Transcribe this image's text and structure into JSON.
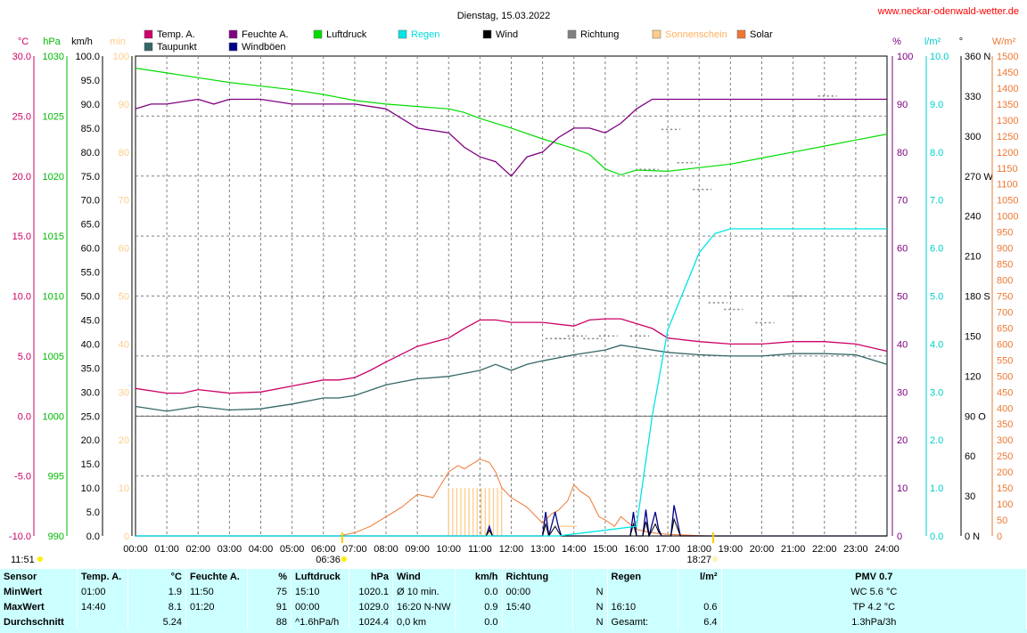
{
  "chart_data": {
    "type": "line",
    "title": "Dienstag, 15.03.2022",
    "website": "www.neckar-odenwald-wetter.de",
    "legend": [
      {
        "name": "Temp. A.",
        "color": "#cc0066"
      },
      {
        "name": "Feuchte A.",
        "color": "#800080"
      },
      {
        "name": "Luftdruck",
        "color": "#00dd00"
      },
      {
        "name": "Regen",
        "color": "#00e5e5"
      },
      {
        "name": "Wind",
        "color": "#000000"
      },
      {
        "name": "Richtung",
        "color": "#808080"
      },
      {
        "name": "Sonnenschein",
        "color": "#ffcc88"
      },
      {
        "name": "Solar",
        "color": "#ee7733"
      },
      {
        "name": "Taupunkt",
        "color": "#336666"
      },
      {
        "name": "Windböen",
        "color": "#000088"
      }
    ],
    "left_axis_units": {
      "temp": "°C",
      "pressure": "hPa",
      "wind": "km/h",
      "sun": "min"
    },
    "right_axis_units": {
      "humidity": "%",
      "rain": "l/m²",
      "direction": "°",
      "solar": "W/m²"
    },
    "x_ticks": [
      "00:00",
      "01:00",
      "02:00",
      "03:00",
      "04:00",
      "05:00",
      "06:00",
      "07:00",
      "08:00",
      "09:00",
      "10:00",
      "11:00",
      "12:00",
      "13:00",
      "14:00",
      "15:00",
      "16:00",
      "17:00",
      "18:00",
      "19:00",
      "20:00",
      "21:00",
      "22:00",
      "23:00",
      "24:00"
    ],
    "temp_ticks": [
      "30.0",
      "25.0",
      "20.0",
      "15.0",
      "10.0",
      "5.0",
      "0.0",
      "-5.0",
      "-10.0"
    ],
    "pressure_ticks": [
      "1030",
      "1025",
      "1020",
      "1015",
      "1010",
      "1005",
      "1000",
      "995",
      "990"
    ],
    "wind_ticks": [
      "100.0",
      "95.0",
      "90.0",
      "85.0",
      "80.0",
      "75.0",
      "70.0",
      "65.0",
      "60.0",
      "55.0",
      "50.0",
      "45.0",
      "40.0",
      "35.0",
      "30.0",
      "25.0",
      "20.0",
      "15.0",
      "10.0",
      "5.0",
      "0.0"
    ],
    "sun_ticks": [
      "100",
      "90",
      "80",
      "70",
      "60",
      "50",
      "40",
      "30",
      "20",
      "10",
      "0"
    ],
    "humidity_ticks": [
      "100",
      "90",
      "80",
      "70",
      "60",
      "50",
      "40",
      "30",
      "20",
      "10",
      "0"
    ],
    "rain_ticks": [
      "10.0",
      "9.0",
      "8.0",
      "7.0",
      "6.0",
      "5.0",
      "4.0",
      "3.0",
      "2.0",
      "1.0",
      "0.0"
    ],
    "direction_ticks": [
      "360 N",
      "330",
      "300",
      "270 W",
      "240",
      "210",
      "180 S",
      "150",
      "120",
      "90 O",
      "60",
      "30",
      "0 N"
    ],
    "solar_ticks": [
      "1500",
      "1450",
      "1400",
      "1350",
      "1300",
      "1250",
      "1200",
      "1150",
      "1100",
      "1050",
      "1000",
      "950",
      "900",
      "850",
      "800",
      "750",
      "700",
      "650",
      "600",
      "550",
      "500",
      "450",
      "400",
      "350",
      "300",
      "250",
      "200",
      "150",
      "100",
      "50",
      "0"
    ],
    "sunrise": "06:36",
    "sunset": "18:27",
    "day_length": "11:51",
    "series": [
      {
        "name": "Temp. A.",
        "unit": "°C",
        "x": [
          0,
          1,
          1.5,
          2,
          3,
          4,
          5,
          6,
          6.5,
          7,
          7.5,
          8,
          9,
          10,
          10.5,
          11,
          11.5,
          12,
          13,
          14,
          14.5,
          15,
          15.5,
          16,
          16.5,
          17,
          18,
          19,
          20,
          21,
          22,
          23,
          24
        ],
        "y": [
          2.3,
          1.9,
          1.9,
          2.2,
          1.9,
          2.0,
          2.5,
          3.0,
          3.0,
          3.2,
          3.8,
          4.5,
          5.8,
          6.5,
          7.3,
          8.0,
          8.0,
          7.8,
          7.8,
          7.5,
          8.0,
          8.1,
          8.1,
          7.7,
          7.3,
          6.5,
          6.2,
          6.0,
          6.0,
          6.2,
          6.2,
          6.0,
          5.4
        ]
      },
      {
        "name": "Taupunkt",
        "unit": "°C",
        "x": [
          0,
          1,
          2,
          3,
          4,
          5,
          6,
          6.5,
          7,
          8,
          9,
          10,
          11,
          11.5,
          12,
          12.5,
          13,
          14,
          15,
          15.5,
          16,
          17,
          18,
          19,
          20,
          21,
          22,
          23,
          24
        ],
        "y": [
          0.8,
          0.4,
          0.8,
          0.5,
          0.6,
          1.0,
          1.5,
          1.5,
          1.7,
          2.6,
          3.1,
          3.3,
          3.8,
          4.3,
          3.8,
          4.3,
          4.6,
          5.1,
          5.5,
          5.9,
          5.7,
          5.3,
          5.1,
          5.0,
          5.0,
          5.2,
          5.2,
          5.1,
          4.3
        ]
      },
      {
        "name": "Feuchte A.",
        "unit": "%",
        "x": [
          0,
          0.5,
          1,
          2,
          2.5,
          3,
          4,
          5,
          6,
          7,
          8,
          9,
          10,
          10.5,
          11,
          11.5,
          12,
          12.5,
          13,
          13.5,
          14,
          14.5,
          15,
          15.5,
          16,
          16.5,
          17,
          18,
          19,
          20,
          21,
          22,
          23,
          24
        ],
        "y": [
          89,
          90,
          90,
          91,
          90,
          91,
          91,
          90,
          90,
          90,
          89,
          85,
          84,
          81,
          79,
          78,
          75,
          79,
          80,
          83,
          85,
          85,
          84,
          86,
          89,
          91,
          91,
          91,
          91,
          91,
          91,
          91,
          91,
          91
        ]
      },
      {
        "name": "Luftdruck",
        "unit": "hPa",
        "x": [
          0,
          1,
          2,
          3,
          4,
          5,
          6,
          7,
          8,
          9,
          10,
          10.5,
          11,
          12,
          13,
          14,
          14.5,
          15,
          15.5,
          16,
          17,
          18,
          19,
          20,
          21,
          22,
          23,
          24
        ],
        "y": [
          1029.0,
          1028.6,
          1028.2,
          1027.8,
          1027.5,
          1027.2,
          1026.8,
          1026.3,
          1026.0,
          1025.8,
          1025.6,
          1025.3,
          1024.8,
          1024.0,
          1023.1,
          1022.3,
          1021.8,
          1020.6,
          1020.1,
          1020.5,
          1020.4,
          1020.7,
          1021.0,
          1021.5,
          1022.0,
          1022.5,
          1023.0,
          1023.5
        ]
      },
      {
        "name": "Regen",
        "unit": "l/m²",
        "x": [
          0,
          13.5,
          16,
          16.5,
          17,
          17.5,
          18,
          18.5,
          19,
          24
        ],
        "y": [
          0,
          0,
          0.2,
          2.5,
          4.3,
          5.1,
          5.9,
          6.3,
          6.4,
          6.4
        ]
      },
      {
        "name": "Wind",
        "unit": "km/h",
        "x": [
          0,
          11.2,
          11.3,
          11.4,
          13.0,
          13.1,
          13.2,
          13.4,
          13.5,
          13.6,
          15.8,
          15.9,
          16.0,
          16.2,
          16.3,
          16.4,
          16.6,
          16.7,
          16.8,
          17.1,
          17.2,
          17.4,
          24
        ],
        "y": [
          0,
          0,
          1.2,
          0,
          0,
          2.5,
          0,
          2.0,
          0.9,
          0,
          0,
          2.5,
          0,
          0,
          3.0,
          0,
          2.5,
          0.9,
          0,
          0,
          3.5,
          0,
          0
        ]
      },
      {
        "name": "Windböen",
        "unit": "km/h",
        "x": [
          0,
          11.2,
          11.3,
          11.4,
          13.0,
          13.1,
          13.2,
          13.4,
          13.5,
          13.6,
          15.8,
          15.9,
          16.0,
          16.2,
          16.3,
          16.4,
          16.6,
          16.7,
          16.8,
          17.1,
          17.2,
          17.4,
          24
        ],
        "y": [
          0,
          0,
          2.0,
          0,
          0,
          5.0,
          0,
          5.0,
          2.0,
          0,
          0,
          5.0,
          0,
          0,
          5.5,
          0,
          5.0,
          1.5,
          0,
          0,
          6.4,
          0,
          0
        ]
      },
      {
        "name": "Solar",
        "unit": "W/m²",
        "x": [
          6.5,
          7,
          7.5,
          8,
          8.5,
          9,
          9.5,
          10,
          10.3,
          10.5,
          11,
          11.3,
          11.5,
          11.7,
          12,
          12.5,
          13,
          13.3,
          13.5,
          13.8,
          14,
          14.2,
          14.5,
          14.8,
          15,
          15.3,
          15.5,
          16,
          16.5,
          17,
          17.5,
          18,
          18.3
        ],
        "y": [
          0,
          10,
          30,
          60,
          90,
          130,
          120,
          200,
          220,
          210,
          240,
          230,
          200,
          150,
          120,
          90,
          40,
          70,
          80,
          110,
          160,
          140,
          120,
          60,
          50,
          30,
          60,
          20,
          10,
          5,
          3,
          1,
          0
        ]
      },
      {
        "name": "Sonnenschein",
        "unit": "min",
        "x": [
          10,
          10.5,
          11,
          11.5,
          11.7,
          13.5,
          14.1
        ],
        "y": [
          10,
          10,
          10,
          10,
          0,
          2,
          2
        ]
      },
      {
        "name": "Richtung",
        "unit": "°",
        "x": [
          13.3,
          13.6,
          14,
          14.5,
          15,
          16,
          16.3,
          16.5,
          17,
          17.5,
          18,
          18.5,
          19,
          20,
          21,
          22
        ],
        "y": [
          148,
          148,
          150,
          148,
          150,
          150,
          275,
          270,
          305,
          280,
          260,
          175,
          170,
          160,
          180,
          330
        ]
      }
    ]
  },
  "stats": {
    "headers": {
      "sensor": "Sensor",
      "temp": "Temp. A.",
      "temp_unit": "°C",
      "hum": "Feuchte A.",
      "hum_unit": "%",
      "press": "Luftdruck",
      "press_unit": "hPa",
      "wind": "Wind",
      "wind_unit": "km/h",
      "dir": "Richtung",
      "rain": "Regen",
      "rain_unit": "l/m²",
      "pmv": "PMV 0.7"
    },
    "rows": [
      {
        "label": "MinWert",
        "t_time": "01:00",
        "t_val": "1.9",
        "h_time": "11:50",
        "h_val": "75",
        "p_time": "15:10",
        "p_val": "1020.1",
        "w_time": "Ø 10 min.",
        "w_dir": "",
        "w_val": "0.0",
        "d_time": "00:00",
        "d_val": "N",
        "r_time": "",
        "r_val": "",
        "x": "WC 5.6 °C"
      },
      {
        "label": "MaxWert",
        "t_time": "14:40",
        "t_val": "8.1",
        "h_time": "01:20",
        "h_val": "91",
        "p_time": "00:00",
        "p_val": "1029.0",
        "w_time": "16:20",
        "w_dir": "N-NW",
        "w_val": "0.9",
        "d_time": "15:40",
        "d_val": "N",
        "r_time": "16:10",
        "r_val": "0.6",
        "x": "TP 4.2 °C"
      },
      {
        "label": "Durchschnitt",
        "t_time": "",
        "t_val": "5.24",
        "h_time": "",
        "h_val": "88",
        "p_time": "^1.6hPa/h",
        "p_val": "1024.4",
        "w_time": "0,0 km",
        "w_dir": "",
        "w_val": "0.0",
        "d_time": "",
        "d_val": "N",
        "r_time": "Gesamt:",
        "r_val": "6.4",
        "x": "1.3hPa/3h"
      }
    ]
  }
}
